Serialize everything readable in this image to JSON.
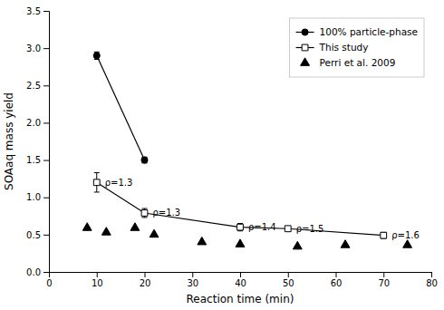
{
  "chart_data": {
    "type": "line",
    "xlabel": "Reaction time (min)",
    "ylabel": "SOAaq mass yield",
    "series": [
      {
        "name": "100% particle-phase",
        "type": "line",
        "marker": "circle",
        "color": "#000000",
        "x": [
          10,
          20
        ],
        "values": [
          2.9,
          1.5
        ],
        "errors": [
          0.05,
          0.04
        ]
      },
      {
        "name": "This study",
        "type": "line",
        "marker": "square-open",
        "color": "#000000",
        "x": [
          10,
          20,
          40,
          50,
          70
        ],
        "values": [
          1.2,
          0.79,
          0.6,
          0.58,
          0.49
        ],
        "errors": [
          0.13,
          0.06,
          0.05,
          0.03,
          0.04
        ]
      },
      {
        "name": "Perri et al. 2009",
        "type": "scatter",
        "marker": "triangle",
        "color": "#000000",
        "x": [
          8,
          12,
          18,
          22,
          32,
          40,
          52,
          62,
          75
        ],
        "values": [
          0.59,
          0.53,
          0.59,
          0.5,
          0.4,
          0.37,
          0.34,
          0.36,
          0.36
        ]
      }
    ],
    "annotations": [
      {
        "text": "ρ=1.3",
        "x": 10,
        "y": 1.2
      },
      {
        "text": "ρ=1.3",
        "x": 20,
        "y": 0.79
      },
      {
        "text": "ρ=1.4",
        "x": 40,
        "y": 0.6
      },
      {
        "text": "ρ=1.5",
        "x": 50,
        "y": 0.58
      },
      {
        "text": "ρ=1.6",
        "x": 70,
        "y": 0.49
      }
    ],
    "xlim": [
      0,
      80
    ],
    "ylim": [
      0.0,
      3.5
    ],
    "xticks": [
      0,
      10,
      20,
      30,
      40,
      50,
      60,
      70,
      80
    ],
    "yticks": [
      {
        "value": 0,
        "label": "0.0"
      },
      0.5,
      {
        "value": 1,
        "label": "1.0"
      },
      1.5,
      {
        "value": 2,
        "label": "2.0"
      },
      2.5,
      {
        "value": 3,
        "label": "3.0"
      },
      3.5
    ],
    "grid": false,
    "legend": "upper right"
  }
}
